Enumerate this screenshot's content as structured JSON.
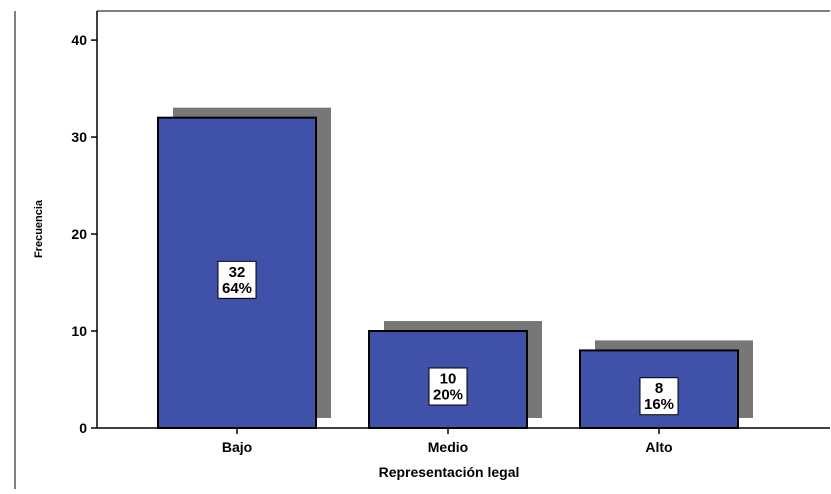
{
  "chart_data": {
    "type": "bar",
    "title": "",
    "xlabel": "Representación legal",
    "ylabel": "Frecuencia",
    "categories": [
      "Bajo",
      "Medio",
      "Alto"
    ],
    "series": [
      {
        "values": [
          32,
          10,
          8
        ]
      }
    ],
    "bar_labels": [
      {
        "count": "32",
        "percent": "64%"
      },
      {
        "count": "10",
        "percent": "20%"
      },
      {
        "count": "8",
        "percent": "16%"
      }
    ],
    "ylim": [
      0,
      43
    ],
    "yticks": [
      "0",
      "10",
      "20",
      "30",
      "40"
    ],
    "ytick_values": [
      0,
      10,
      20,
      30,
      40
    ],
    "grid": false,
    "legend": "none",
    "colors": {
      "bar_fill": "#3F51A8",
      "bar_stroke": "#000000",
      "shadow": "#777777",
      "axis": "#000000",
      "label_box": "#ffffff",
      "text": "#000000"
    }
  }
}
